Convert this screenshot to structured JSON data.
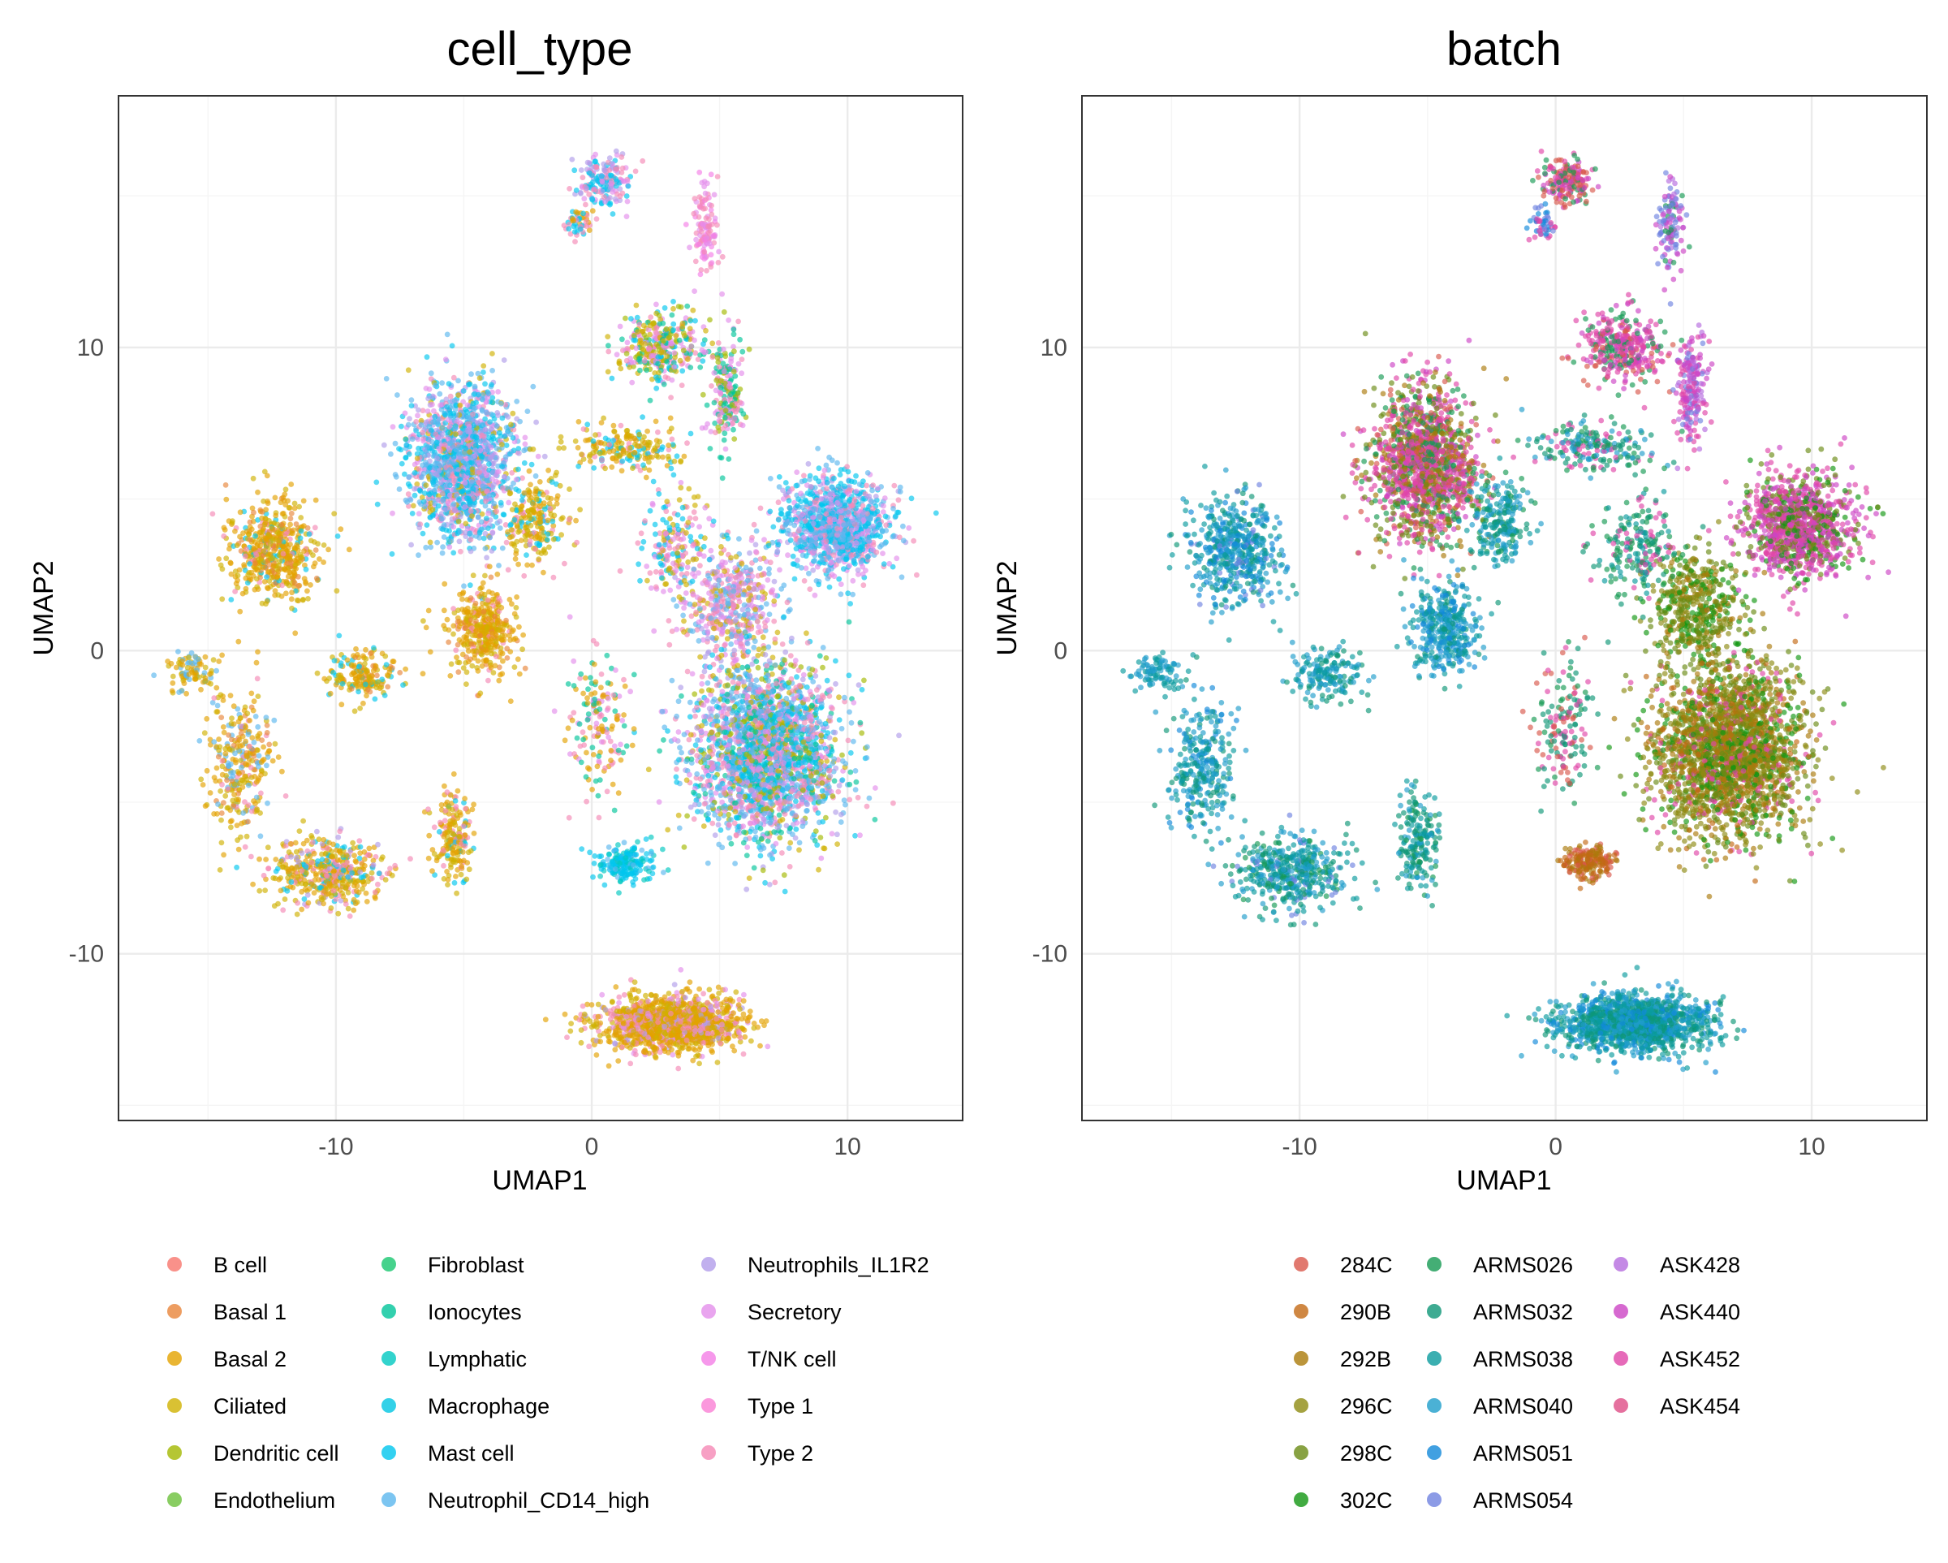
{
  "chart_data": [
    {
      "type": "scatter",
      "title": "cell_type",
      "xlabel": "UMAP1",
      "ylabel": "UMAP2",
      "xlim": [
        -18.5,
        14.5
      ],
      "ylim": [
        -15.5,
        18.3
      ],
      "xticks": [
        -10,
        0,
        10
      ],
      "yticks": [
        -10,
        0,
        10
      ],
      "tick_labels": {
        "x": [
          "-10",
          "0",
          "10"
        ],
        "y": [
          "-10",
          "0",
          "10"
        ]
      },
      "grid": true,
      "legend_position": "bottom",
      "legend_title": "",
      "legend": [
        {
          "label": "B cell",
          "color": "#F8766D"
        },
        {
          "label": "Basal 1",
          "color": "#E8853A"
        },
        {
          "label": "Basal 2",
          "color": "#E4A200"
        },
        {
          "label": "Ciliated",
          "color": "#D0B100"
        },
        {
          "label": "Dendritic cell",
          "color": "#A3B800"
        },
        {
          "label": "Endothelium",
          "color": "#6BC13B"
        },
        {
          "label": "Fibroblast",
          "color": "#18C76F"
        },
        {
          "label": "Ionocytes",
          "color": "#00C49A"
        },
        {
          "label": "Lymphatic",
          "color": "#00C8C0"
        },
        {
          "label": "Macrophage",
          "color": "#00C5E2"
        },
        {
          "label": "Mast cell",
          "color": "#00C6EE"
        },
        {
          "label": "Neutrophil_CD14_high",
          "color": "#5BB7EE"
        },
        {
          "label": "Neutrophils_IL1R2",
          "color": "#B19CEA"
        },
        {
          "label": "Secretory",
          "color": "#E38EEB"
        },
        {
          "label": "T/NK cell",
          "color": "#F47EE6"
        },
        {
          "label": "Type 1",
          "color": "#FA7FD4"
        },
        {
          "label": "Type 2",
          "color": "#F588B5"
        }
      ],
      "clusters": [
        {
          "cx": -12.5,
          "cy": 3.3,
          "sx": 1.4,
          "sy": 1.4,
          "n": 520,
          "colors": [
            "#E4A200",
            "#D0B100",
            "#E8853A",
            "#00C6EE",
            "#F588B5"
          ],
          "w": [
            45,
            25,
            12,
            10,
            8
          ]
        },
        {
          "cx": -9.0,
          "cy": -0.8,
          "sx": 1.2,
          "sy": 0.8,
          "n": 170,
          "colors": [
            "#E4A200",
            "#D0B100",
            "#00C6EE",
            "#E8853A"
          ],
          "w": [
            40,
            30,
            20,
            10
          ]
        },
        {
          "cx": -13.8,
          "cy": -3.8,
          "sx": 1.0,
          "sy": 1.8,
          "n": 300,
          "colors": [
            "#E4A200",
            "#D0B100",
            "#5BB7EE",
            "#F588B5",
            "#E8853A"
          ],
          "w": [
            35,
            25,
            20,
            10,
            10
          ]
        },
        {
          "cx": -15.6,
          "cy": -0.7,
          "sx": 0.7,
          "sy": 0.5,
          "n": 90,
          "colors": [
            "#E4A200",
            "#D0B100",
            "#5BB7EE"
          ],
          "w": [
            40,
            30,
            30
          ]
        },
        {
          "cx": -10.3,
          "cy": -7.3,
          "sx": 1.7,
          "sy": 0.9,
          "n": 460,
          "colors": [
            "#E4A200",
            "#D0B100",
            "#F588B5",
            "#00C6EE",
            "#B19CEA"
          ],
          "w": [
            35,
            25,
            20,
            12,
            8
          ]
        },
        {
          "cx": -5.4,
          "cy": -6.2,
          "sx": 0.6,
          "sy": 1.3,
          "n": 190,
          "colors": [
            "#E4A200",
            "#D0B100",
            "#F588B5",
            "#00C6EE"
          ],
          "w": [
            45,
            30,
            15,
            10
          ]
        },
        {
          "cx": -5.1,
          "cy": 6.2,
          "sx": 1.6,
          "sy": 2.1,
          "n": 1500,
          "colors": [
            "#5BB7EE",
            "#00C6EE",
            "#B19CEA",
            "#E38EEB",
            "#F588B5",
            "#D0B100"
          ],
          "w": [
            30,
            25,
            15,
            12,
            10,
            8
          ]
        },
        {
          "cx": -4.3,
          "cy": 0.7,
          "sx": 1.1,
          "sy": 1.2,
          "n": 380,
          "colors": [
            "#E4A200",
            "#D0B100",
            "#E8853A",
            "#F588B5"
          ],
          "w": [
            50,
            25,
            15,
            10
          ]
        },
        {
          "cx": -2.2,
          "cy": 4.3,
          "sx": 1.0,
          "sy": 1.2,
          "n": 220,
          "colors": [
            "#D0B100",
            "#E4A200",
            "#00C6EE",
            "#F588B5"
          ],
          "w": [
            35,
            30,
            20,
            15
          ]
        },
        {
          "cx": 1.5,
          "cy": 6.7,
          "sx": 1.8,
          "sy": 0.6,
          "n": 200,
          "colors": [
            "#D0B100",
            "#E4A200",
            "#F588B5",
            "#00C6EE"
          ],
          "w": [
            35,
            25,
            20,
            20
          ]
        },
        {
          "cx": 2.6,
          "cy": 10.0,
          "sx": 1.3,
          "sy": 0.9,
          "n": 350,
          "colors": [
            "#00C49A",
            "#E38EEB",
            "#D0B100",
            "#F588B5",
            "#00C6EE",
            "#A3B800"
          ],
          "w": [
            20,
            20,
            20,
            15,
            15,
            10
          ]
        },
        {
          "cx": 5.3,
          "cy": 8.7,
          "sx": 0.5,
          "sy": 1.6,
          "n": 200,
          "colors": [
            "#00C49A",
            "#A3B800",
            "#E38EEB",
            "#F588B5"
          ],
          "w": [
            30,
            25,
            25,
            20
          ]
        },
        {
          "cx": 0.5,
          "cy": 15.5,
          "sx": 0.9,
          "sy": 0.6,
          "n": 180,
          "colors": [
            "#00C6EE",
            "#F588B5",
            "#B19CEA",
            "#E38EEB"
          ],
          "w": [
            35,
            25,
            20,
            20
          ]
        },
        {
          "cx": -0.5,
          "cy": 14.1,
          "sx": 0.4,
          "sy": 0.4,
          "n": 50,
          "colors": [
            "#E4A200",
            "#F588B5",
            "#00C6EE"
          ],
          "w": [
            40,
            30,
            30
          ]
        },
        {
          "cx": 4.5,
          "cy": 14.0,
          "sx": 0.4,
          "sy": 1.2,
          "n": 120,
          "colors": [
            "#F588B5",
            "#E38EEB",
            "#F47EE6"
          ],
          "w": [
            40,
            30,
            30
          ]
        },
        {
          "cx": 5.5,
          "cy": 1.5,
          "sx": 1.5,
          "sy": 1.5,
          "n": 480,
          "colors": [
            "#F588B5",
            "#E38EEB",
            "#5BB7EE",
            "#D0B100",
            "#B19CEA"
          ],
          "w": [
            30,
            25,
            20,
            15,
            10
          ]
        },
        {
          "cx": 9.5,
          "cy": 4.1,
          "sx": 1.7,
          "sy": 1.3,
          "n": 1100,
          "colors": [
            "#00C6EE",
            "#5BB7EE",
            "#F588B5",
            "#E38EEB",
            "#B19CEA"
          ],
          "w": [
            35,
            25,
            15,
            15,
            10
          ]
        },
        {
          "cx": 6.8,
          "cy": -3.3,
          "sx": 2.3,
          "sy": 2.3,
          "n": 2400,
          "colors": [
            "#5BB7EE",
            "#00C6EE",
            "#F588B5",
            "#E38EEB",
            "#00C49A",
            "#A3B800",
            "#D0B100",
            "#B19CEA"
          ],
          "w": [
            22,
            18,
            15,
            13,
            10,
            8,
            7,
            7
          ]
        },
        {
          "cx": 1.3,
          "cy": -7.0,
          "sx": 0.9,
          "sy": 0.5,
          "n": 200,
          "colors": [
            "#00C6EE",
            "#00C8C0",
            "#5BB7EE"
          ],
          "w": [
            60,
            25,
            15
          ]
        },
        {
          "cx": 3.1,
          "cy": -12.3,
          "sx": 2.3,
          "sy": 0.75,
          "n": 1400,
          "colors": [
            "#E4A200",
            "#D0B100",
            "#F588B5",
            "#E38EEB",
            "#B19CEA"
          ],
          "w": [
            45,
            25,
            14,
            10,
            6
          ]
        },
        {
          "cx": 0.3,
          "cy": -2.5,
          "sx": 1.0,
          "sy": 1.8,
          "n": 160,
          "colors": [
            "#E4A200",
            "#F588B5",
            "#00C49A",
            "#E38EEB"
          ],
          "w": [
            30,
            25,
            25,
            20
          ]
        },
        {
          "cx": 3.2,
          "cy": 3.4,
          "sx": 1.3,
          "sy": 1.4,
          "n": 200,
          "colors": [
            "#00C6EE",
            "#F588B5",
            "#E38EEB",
            "#D0B100"
          ],
          "w": [
            30,
            25,
            25,
            20
          ]
        }
      ]
    },
    {
      "type": "scatter",
      "title": "batch",
      "xlabel": "UMAP1",
      "ylabel": "UMAP2",
      "xlim": [
        -18.5,
        14.5
      ],
      "ylim": [
        -15.5,
        18.3
      ],
      "xticks": [
        -10,
        0,
        10
      ],
      "yticks": [
        -10,
        0,
        10
      ],
      "tick_labels": {
        "x": [
          "-10",
          "0",
          "10"
        ],
        "y": [
          "-10",
          "0",
          "10"
        ]
      },
      "grid": true,
      "legend_position": "bottom",
      "legend_title": "",
      "legend": [
        {
          "label": "284C",
          "color": "#D9574B"
        },
        {
          "label": "290B",
          "color": "#C36914"
        },
        {
          "label": "292B",
          "color": "#AA7A0A"
        },
        {
          "label": "296C",
          "color": "#8E8B12"
        },
        {
          "label": "298C",
          "color": "#6A8B14"
        },
        {
          "label": "302C",
          "color": "#119611"
        },
        {
          "label": "ARMS026",
          "color": "#159A53"
        },
        {
          "label": "ARMS032",
          "color": "#0E9677"
        },
        {
          "label": "ARMS038",
          "color": "#0A9B9E"
        },
        {
          "label": "ARMS040",
          "color": "#1E9DCB"
        },
        {
          "label": "ARMS051",
          "color": "#1188DA"
        },
        {
          "label": "ARMS054",
          "color": "#6F82E0"
        },
        {
          "label": "ASK428",
          "color": "#B56CDE"
        },
        {
          "label": "ASK440",
          "color": "#CC44C4"
        },
        {
          "label": "ASK452",
          "color": "#E045A8"
        },
        {
          "label": "ASK454",
          "color": "#DF4C86"
        }
      ],
      "clusters": [
        {
          "cx": -12.5,
          "cy": 3.3,
          "sx": 1.4,
          "sy": 1.4,
          "n": 520,
          "colors": [
            "#1E9DCB",
            "#0A9B9E",
            "#1188DA",
            "#0E9677",
            "#6F82E0"
          ],
          "w": [
            35,
            25,
            20,
            12,
            8
          ]
        },
        {
          "cx": -9.0,
          "cy": -0.8,
          "sx": 1.2,
          "sy": 0.8,
          "n": 170,
          "colors": [
            "#1E9DCB",
            "#0A9B9E",
            "#0E9677"
          ],
          "w": [
            40,
            35,
            25
          ]
        },
        {
          "cx": -13.8,
          "cy": -3.8,
          "sx": 1.0,
          "sy": 1.8,
          "n": 300,
          "colors": [
            "#1E9DCB",
            "#0A9B9E",
            "#0E9677",
            "#1188DA"
          ],
          "w": [
            35,
            30,
            20,
            15
          ]
        },
        {
          "cx": -15.6,
          "cy": -0.7,
          "sx": 0.7,
          "sy": 0.5,
          "n": 90,
          "colors": [
            "#1E9DCB",
            "#0A9B9E"
          ],
          "w": [
            55,
            45
          ]
        },
        {
          "cx": -10.3,
          "cy": -7.3,
          "sx": 1.7,
          "sy": 0.9,
          "n": 460,
          "colors": [
            "#0A9B9E",
            "#1E9DCB",
            "#0E9677",
            "#159A53",
            "#6F82E0"
          ],
          "w": [
            30,
            30,
            20,
            12,
            8
          ]
        },
        {
          "cx": -5.4,
          "cy": -6.2,
          "sx": 0.6,
          "sy": 1.3,
          "n": 190,
          "colors": [
            "#0E9677",
            "#0A9B9E",
            "#1E9DCB",
            "#159A53"
          ],
          "w": [
            35,
            25,
            25,
            15
          ]
        },
        {
          "cx": -5.1,
          "cy": 6.2,
          "sx": 1.6,
          "sy": 2.1,
          "n": 1500,
          "colors": [
            "#E045A8",
            "#6A8B14",
            "#159A53",
            "#AA7A0A",
            "#CC44C4",
            "#D9574B"
          ],
          "w": [
            30,
            20,
            15,
            15,
            12,
            8
          ]
        },
        {
          "cx": -4.3,
          "cy": 0.7,
          "sx": 1.1,
          "sy": 1.2,
          "n": 380,
          "colors": [
            "#1E9DCB",
            "#0A9B9E",
            "#1188DA",
            "#0E9677"
          ],
          "w": [
            40,
            25,
            20,
            15
          ]
        },
        {
          "cx": -2.2,
          "cy": 4.3,
          "sx": 1.0,
          "sy": 1.2,
          "n": 220,
          "colors": [
            "#0A9B9E",
            "#1E9DCB",
            "#0E9677",
            "#159A53"
          ],
          "w": [
            35,
            30,
            20,
            15
          ]
        },
        {
          "cx": 1.5,
          "cy": 6.7,
          "sx": 1.8,
          "sy": 0.6,
          "n": 200,
          "colors": [
            "#0E9677",
            "#1E9DCB",
            "#159A53",
            "#E045A8"
          ],
          "w": [
            30,
            25,
            25,
            20
          ]
        },
        {
          "cx": 2.6,
          "cy": 10.0,
          "sx": 1.3,
          "sy": 0.9,
          "n": 350,
          "colors": [
            "#E045A8",
            "#CC44C4",
            "#159A53",
            "#D9574B"
          ],
          "w": [
            40,
            25,
            20,
            15
          ]
        },
        {
          "cx": 5.3,
          "cy": 8.7,
          "sx": 0.5,
          "sy": 1.6,
          "n": 200,
          "colors": [
            "#CC44C4",
            "#E045A8",
            "#B56CDE",
            "#6F82E0"
          ],
          "w": [
            35,
            30,
            20,
            15
          ]
        },
        {
          "cx": 0.5,
          "cy": 15.5,
          "sx": 0.9,
          "sy": 0.6,
          "n": 180,
          "colors": [
            "#D9574B",
            "#E045A8",
            "#CC44C4",
            "#159A53"
          ],
          "w": [
            35,
            25,
            20,
            20
          ]
        },
        {
          "cx": -0.5,
          "cy": 14.1,
          "sx": 0.4,
          "sy": 0.4,
          "n": 50,
          "colors": [
            "#6F82E0",
            "#1188DA",
            "#E045A8"
          ],
          "w": [
            40,
            30,
            30
          ]
        },
        {
          "cx": 4.5,
          "cy": 14.0,
          "sx": 0.4,
          "sy": 1.2,
          "n": 120,
          "colors": [
            "#6F82E0",
            "#B56CDE",
            "#CC44C4",
            "#159A53"
          ],
          "w": [
            35,
            25,
            25,
            15
          ]
        },
        {
          "cx": 5.5,
          "cy": 1.5,
          "sx": 1.5,
          "sy": 1.5,
          "n": 480,
          "colors": [
            "#6A8B14",
            "#8E8B12",
            "#119611",
            "#AA7A0A"
          ],
          "w": [
            35,
            25,
            25,
            15
          ]
        },
        {
          "cx": 9.5,
          "cy": 4.1,
          "sx": 1.7,
          "sy": 1.3,
          "n": 1100,
          "colors": [
            "#E045A8",
            "#CC44C4",
            "#6A8B14",
            "#119611"
          ],
          "w": [
            40,
            25,
            20,
            15
          ]
        },
        {
          "cx": 6.8,
          "cy": -3.3,
          "sx": 2.3,
          "sy": 2.3,
          "n": 2400,
          "colors": [
            "#8E8B12",
            "#6A8B14",
            "#AA7A0A",
            "#119611",
            "#E045A8",
            "#C36914"
          ],
          "w": [
            28,
            22,
            18,
            14,
            10,
            8
          ]
        },
        {
          "cx": 1.3,
          "cy": -7.0,
          "sx": 0.9,
          "sy": 0.5,
          "n": 200,
          "colors": [
            "#C36914",
            "#AA7A0A",
            "#D9574B"
          ],
          "w": [
            45,
            35,
            20
          ]
        },
        {
          "cx": 3.1,
          "cy": -12.3,
          "sx": 2.3,
          "sy": 0.75,
          "n": 1400,
          "colors": [
            "#0A9B9E",
            "#1E9DCB",
            "#0E9677",
            "#1188DA"
          ],
          "w": [
            35,
            30,
            20,
            15
          ]
        },
        {
          "cx": 0.3,
          "cy": -2.5,
          "sx": 1.0,
          "sy": 1.8,
          "n": 160,
          "colors": [
            "#D9574B",
            "#E045A8",
            "#0E9677",
            "#159A53"
          ],
          "w": [
            30,
            25,
            25,
            20
          ]
        },
        {
          "cx": 3.2,
          "cy": 3.4,
          "sx": 1.3,
          "sy": 1.4,
          "n": 200,
          "colors": [
            "#0E9677",
            "#159A53",
            "#E045A8",
            "#0A9B9E"
          ],
          "w": [
            30,
            25,
            25,
            20
          ]
        }
      ]
    }
  ]
}
